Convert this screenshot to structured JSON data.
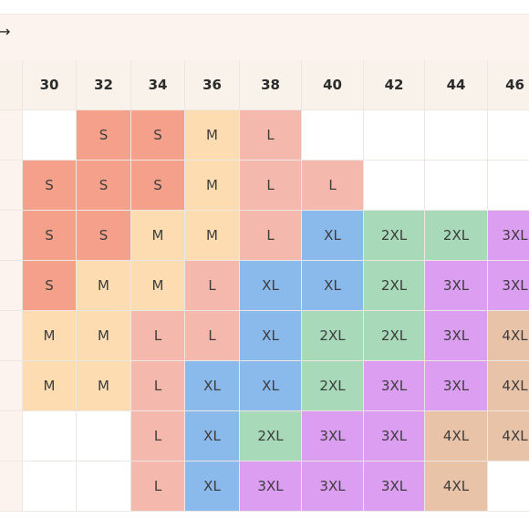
{
  "nav": {
    "arrow": "→"
  },
  "colors": {
    "S": "#f4a08a",
    "M": "#fcdcb0",
    "L": "#f4b8ac",
    "XL": "#8ab9ec",
    "2XL": "#a8d9b9",
    "3XL": "#dc9ef0",
    "4XL": "#e8c3a8"
  },
  "table": {
    "columns": [
      "30",
      "32",
      "34",
      "36",
      "38",
      "40",
      "42",
      "44",
      "46"
    ],
    "rows": [
      [
        "",
        "S",
        "S",
        "M",
        "L",
        "",
        "",
        "",
        ""
      ],
      [
        "S",
        "S",
        "S",
        "M",
        "L",
        "L",
        "",
        "",
        ""
      ],
      [
        "S",
        "S",
        "M",
        "M",
        "L",
        "XL",
        "2XL",
        "2XL",
        "3XL"
      ],
      [
        "S",
        "M",
        "M",
        "L",
        "XL",
        "XL",
        "2XL",
        "3XL",
        "3XL"
      ],
      [
        "M",
        "M",
        "L",
        "L",
        "XL",
        "2XL",
        "2XL",
        "3XL",
        "4XL"
      ],
      [
        "M",
        "M",
        "L",
        "XL",
        "XL",
        "2XL",
        "3XL",
        "3XL",
        "4XL"
      ],
      [
        "",
        "",
        "L",
        "XL",
        "2XL",
        "3XL",
        "3XL",
        "4XL",
        "4XL"
      ],
      [
        "",
        "",
        "L",
        "XL",
        "3XL",
        "3XL",
        "3XL",
        "4XL",
        ""
      ]
    ]
  }
}
